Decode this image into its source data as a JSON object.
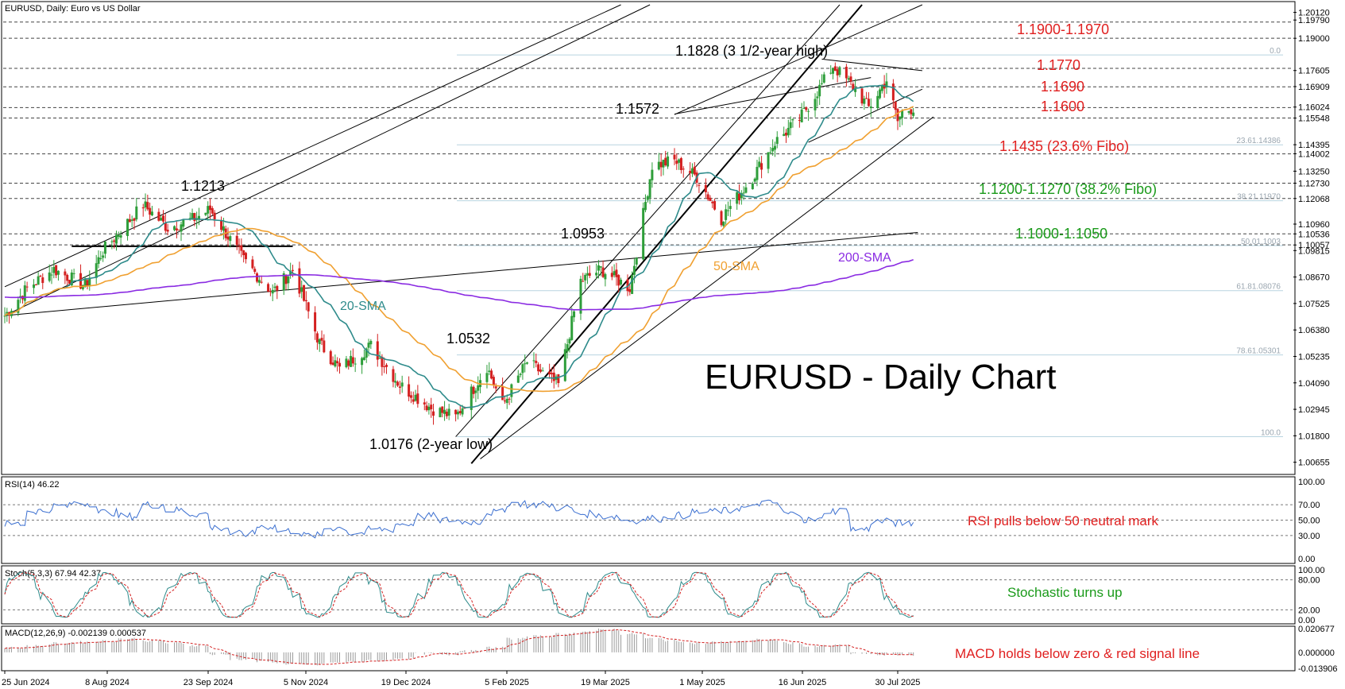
{
  "chart_data": {
    "type": "candlestick",
    "instrument_label": "EURUSD, Daily:  Euro vs US Dollar",
    "title": "EURUSD - Daily Chart",
    "main_price_labels": [
      "1.20120",
      "1.19790",
      "1.19000",
      "1.17605",
      "1.16909",
      "1.16024",
      "1.15548",
      "1.14395",
      "1.14002",
      "1.13250",
      "1.12730",
      "1.12068",
      "1.10960",
      "1.10536",
      "1.10057",
      "1.09815",
      "1.08670",
      "1.07525",
      "1.06380",
      "1.05235",
      "1.04090",
      "1.02945",
      "1.01800",
      "1.00655"
    ],
    "x_tick_labels": [
      "25 Jun 2024",
      "8 Aug 2024",
      "23 Sep 2024",
      "5 Nov 2024",
      "19 Dec 2024",
      "5 Feb 2025",
      "19 Mar 2025",
      "1 May 2025",
      "16 Jun 2025",
      "30 Jul 2025"
    ],
    "ohlc_waypoints": {
      "description_free": true,
      "dates": [
        "2024-06-25",
        "2024-07-05",
        "2024-07-17",
        "2024-07-31",
        "2024-08-08",
        "2024-08-26",
        "2024-09-06",
        "2024-09-18",
        "2024-09-25",
        "2024-10-10",
        "2024-10-23",
        "2024-11-01",
        "2024-11-13",
        "2024-11-22",
        "2024-12-06",
        "2024-12-19",
        "2025-01-02",
        "2025-01-13",
        "2025-01-27",
        "2025-02-03",
        "2025-02-14",
        "2025-02-28",
        "2025-03-10",
        "2025-03-19",
        "2025-04-01",
        "2025-04-11",
        "2025-04-21",
        "2025-05-01",
        "2025-05-12",
        "2025-05-26",
        "2025-06-05",
        "2025-06-16",
        "2025-06-26",
        "2025-07-01",
        "2025-07-11",
        "2025-07-17",
        "2025-07-25",
        "2025-07-30",
        "2025-08-01",
        "2025-08-06"
      ],
      "close": [
        1.07,
        1.082,
        1.09,
        1.083,
        1.098,
        1.118,
        1.108,
        1.112,
        1.116,
        1.094,
        1.08,
        1.09,
        1.058,
        1.047,
        1.057,
        1.04,
        1.03,
        1.026,
        1.048,
        1.031,
        1.05,
        1.04,
        1.085,
        1.09,
        1.082,
        1.135,
        1.137,
        1.13,
        1.112,
        1.13,
        1.145,
        1.155,
        1.17,
        1.178,
        1.168,
        1.16,
        1.172,
        1.154,
        1.158,
        1.16
      ]
    },
    "sma": [
      {
        "name": "20-SMA",
        "color": "#2e8b8b"
      },
      {
        "name": "50-SMA",
        "color": "#f0a030"
      },
      {
        "name": "200-SMA",
        "color": "#8a2be2"
      }
    ],
    "price_annotations": [
      {
        "text": "1.1828 (3 1/2-year high)",
        "color": "#000000"
      },
      {
        "text": "1.1572",
        "color": "#000000"
      },
      {
        "text": "1.1213",
        "color": "#000000"
      },
      {
        "text": "1.0953",
        "color": "#000000"
      },
      {
        "text": "1.0532",
        "color": "#000000"
      },
      {
        "text": "1.0176 (2-year low)",
        "color": "#000000"
      }
    ],
    "levels": [
      {
        "text": "1.1900-1.1970",
        "color": "#e02020"
      },
      {
        "text": "1.1770",
        "color": "#e02020"
      },
      {
        "text": "1.1690",
        "color": "#e02020"
      },
      {
        "text": "1.1600",
        "color": "#e02020"
      },
      {
        "text": "1.1435 (23.6% Fibo)",
        "color": "#e02020"
      },
      {
        "text": "1.1200-1.1270 (38.2% Fibo)",
        "color": "#1a9a1a"
      },
      {
        "text": "1.1000-1.1050",
        "color": "#1a9a1a"
      }
    ],
    "fib_labels": [
      "0.0",
      "23.61.14386",
      "38.21.11970",
      "50.01.1003",
      "61.81.08076",
      "78.61.05301",
      "100.0"
    ],
    "rsi": {
      "label": "RSI(14) 46.22",
      "axis": [
        "100.00",
        "70.00",
        "50.00",
        "30.00",
        "0.00"
      ],
      "annotation": "RSI pulls below 50 neutral mark",
      "annotation_color": "#e02020",
      "values": [
        45,
        62,
        68,
        72,
        60,
        55,
        70,
        63,
        58,
        40,
        32,
        42,
        36,
        30,
        40,
        33,
        38,
        45,
        55,
        50,
        48,
        60,
        72,
        70,
        66,
        58,
        55,
        50,
        52,
        56,
        60,
        62,
        66,
        72,
        58,
        50,
        62,
        38,
        48,
        46
      ]
    },
    "stochastic": {
      "label": "Stoch(5,3,3) 67.94 42.37",
      "axis": [
        "100.00",
        "80.00",
        "20.00",
        "0.00"
      ],
      "annotation": "Stochastic turns up",
      "annotation_color": "#1a9a1a"
    },
    "macd": {
      "label": "MACD(12,26,9) -0.002139 0.000537",
      "axis": [
        "0.020677",
        "0.000000",
        "-0.013906"
      ],
      "annotation": "MACD holds below zero & red signal line",
      "annotation_color": "#e02020",
      "histogram": [
        0.004,
        0.006,
        0.008,
        0.009,
        0.01,
        0.012,
        0.01,
        0.008,
        0.006,
        -0.002,
        -0.006,
        -0.008,
        -0.01,
        -0.011,
        -0.009,
        -0.008,
        -0.007,
        -0.005,
        -0.001,
        -0.002,
        0.002,
        0.004,
        0.012,
        0.014,
        0.016,
        0.018,
        0.02,
        0.016,
        0.012,
        0.01,
        0.008,
        0.009,
        0.01,
        0.011,
        0.008,
        0.005,
        0.006,
        -0.001,
        -0.002,
        -0.002
      ]
    },
    "colors": {
      "bull": "#2e9e3a",
      "bear": "#d42020",
      "grid": "#bfbfbf",
      "text": "#000000"
    }
  }
}
